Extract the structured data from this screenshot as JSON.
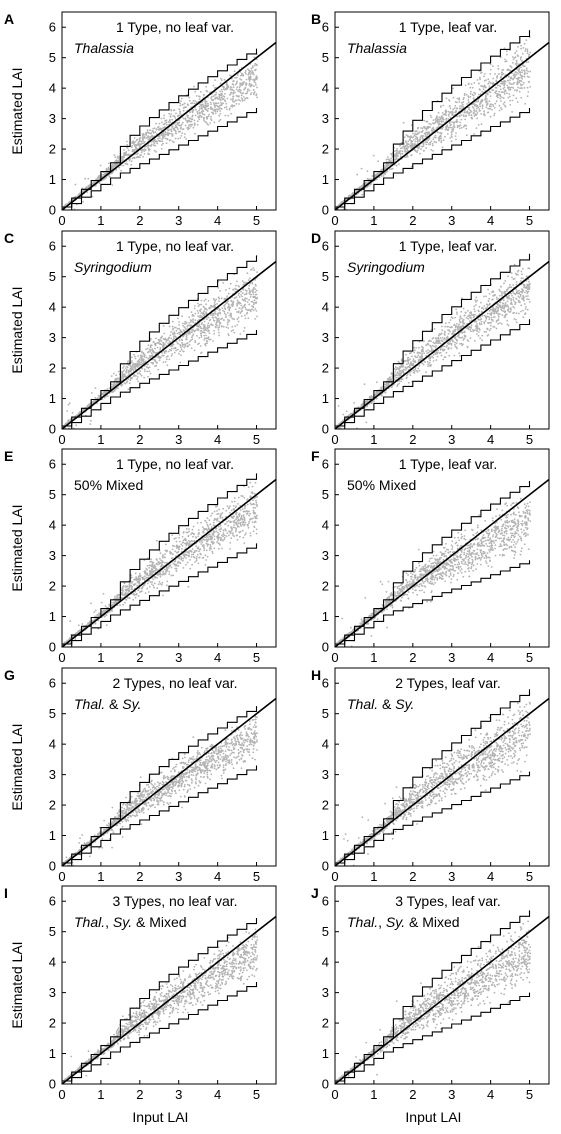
{
  "chart_data": {
    "type": "scatter",
    "axes": {
      "xlim": [
        0,
        5.5
      ],
      "ylim": [
        0,
        6.5
      ],
      "xticks": [
        "0",
        "1",
        "2",
        "3",
        "4",
        "5"
      ],
      "yticks": [
        "0",
        "1",
        "2",
        "3",
        "4",
        "5",
        "6"
      ]
    },
    "x_axis_label": "Input LAI",
    "y_axis_label": "Estimated LAI",
    "reference_line": {
      "slope": 1,
      "intercept": 0
    },
    "panels": [
      {
        "letter": "A",
        "title": "1 Type, no leaf var.",
        "subtitle_parts": [
          {
            "text": "Thalassia",
            "italic": true
          }
        ],
        "upper_max": 5.3,
        "lower_max": 3.35,
        "spread": 0.18,
        "seed": 11
      },
      {
        "letter": "B",
        "title": "1 Type, leaf var.",
        "subtitle_parts": [
          {
            "text": "Thalassia",
            "italic": true
          }
        ],
        "upper_max": 5.9,
        "lower_max": 3.35,
        "spread": 0.28,
        "seed": 23
      },
      {
        "letter": "C",
        "title": "1 Type, no leaf var.",
        "subtitle_parts": [
          {
            "text": "Syringodium",
            "italic": true
          }
        ],
        "upper_max": 5.7,
        "lower_max": 3.25,
        "spread": 0.22,
        "seed": 37
      },
      {
        "letter": "D",
        "title": "1 Type, leaf var.",
        "subtitle_parts": [
          {
            "text": "Syringodium",
            "italic": true
          }
        ],
        "upper_max": 5.75,
        "lower_max": 3.6,
        "spread": 0.25,
        "seed": 41
      },
      {
        "letter": "E",
        "title": "1 Type, no leaf var.",
        "subtitle_parts": [
          {
            "text": "50% Mixed",
            "italic": false
          }
        ],
        "upper_max": 5.7,
        "lower_max": 3.4,
        "spread": 0.24,
        "seed": 53
      },
      {
        "letter": "F",
        "title": "1 Type, leaf var.",
        "subtitle_parts": [
          {
            "text": "50% Mixed",
            "italic": false
          }
        ],
        "upper_max": 5.45,
        "lower_max": 2.85,
        "spread": 0.28,
        "seed": 67
      },
      {
        "letter": "G",
        "title": "2 Types, no leaf var.",
        "subtitle_parts": [
          {
            "text": "Thal.",
            "italic": true
          },
          {
            "text": " & ",
            "italic": false
          },
          {
            "text": "Sy.",
            "italic": true
          }
        ],
        "upper_max": 5.25,
        "lower_max": 3.3,
        "spread": 0.2,
        "seed": 71
      },
      {
        "letter": "H",
        "title": "2 Types, leaf var.",
        "subtitle_parts": [
          {
            "text": "Thal.",
            "italic": true
          },
          {
            "text": " & ",
            "italic": false
          },
          {
            "text": "Sy.",
            "italic": true
          }
        ],
        "upper_max": 5.8,
        "lower_max": 3.1,
        "spread": 0.27,
        "seed": 83
      },
      {
        "letter": "I",
        "title": "3 Types, no leaf var.",
        "subtitle_parts": [
          {
            "text": "Thal.",
            "italic": true
          },
          {
            "text": ", ",
            "italic": false
          },
          {
            "text": "Sy.",
            "italic": true
          },
          {
            "text": " & Mixed",
            "italic": false
          }
        ],
        "upper_max": 5.45,
        "lower_max": 3.35,
        "spread": 0.22,
        "seed": 97
      },
      {
        "letter": "J",
        "title": "3 Types, leaf var.",
        "subtitle_parts": [
          {
            "text": "Thal.",
            "italic": true
          },
          {
            "text": ", ",
            "italic": false
          },
          {
            "text": "Sy.",
            "italic": true
          },
          {
            "text": " & Mixed",
            "italic": false
          }
        ],
        "upper_max": 5.7,
        "lower_max": 3.0,
        "spread": 0.28,
        "seed": 101
      }
    ]
  },
  "colors": {
    "points": "#b3b3b3",
    "lines": "#000000",
    "background": "#ffffff"
  }
}
